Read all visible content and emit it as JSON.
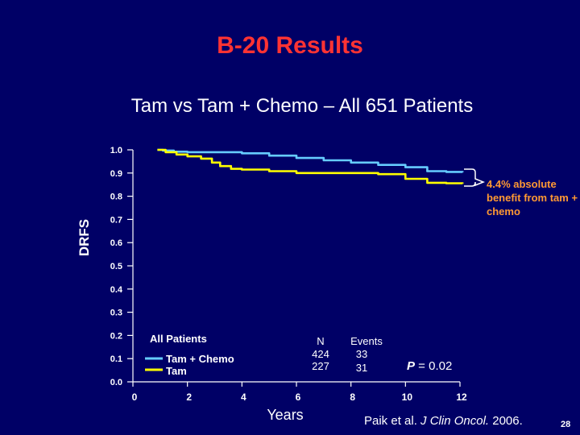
{
  "slide": {
    "title": "B-20 Results",
    "subtitle": "Tam vs Tam + Chemo – All 651 Patients",
    "benefit_note": "4.4% absolute benefit from tam + chemo",
    "citation_prefix": "Paik et al. ",
    "citation_journal": "J Clin Oncol.",
    "citation_year": " 2006.",
    "page_number": "28"
  },
  "colors": {
    "background": "#000066",
    "title": "#ff3333",
    "tam_chemo": "#66ccff",
    "tam": "#ffff00",
    "annotation": "#ff9933",
    "axis": "#ffffff"
  },
  "chart_data": {
    "type": "line",
    "title": "Tam vs Tam + Chemo – All 651 Patients",
    "xlabel": "Years",
    "ylabel": "DRFS",
    "xlim": [
      0,
      12
    ],
    "ylim": [
      0,
      1
    ],
    "x_ticks": [
      0,
      2,
      4,
      6,
      8,
      10,
      12
    ],
    "y_ticks": [
      "0.0",
      "0.1",
      "0.2",
      "0.3",
      "0.4",
      "0.5",
      "0.6",
      "0.7",
      "0.8",
      "0.9",
      "1.0"
    ],
    "series": [
      {
        "name": "Tam + Chemo",
        "color": "#66ccff",
        "x": [
          0.9,
          1.1,
          1.5,
          2.0,
          3.4,
          4.0,
          5.0,
          6.0,
          7.0,
          8.0,
          9.0,
          10.0,
          10.8,
          11.5,
          12.1
        ],
        "y": [
          1.0,
          0.997,
          0.992,
          0.99,
          0.99,
          0.985,
          0.975,
          0.965,
          0.955,
          0.945,
          0.935,
          0.925,
          0.908,
          0.905,
          0.904
        ]
      },
      {
        "name": "Tam",
        "color": "#ffff00",
        "x": [
          0.9,
          1.2,
          1.6,
          2.0,
          2.5,
          2.9,
          3.2,
          3.6,
          4.0,
          5.0,
          6.0,
          7.0,
          8.0,
          9.0,
          10.0,
          10.8,
          11.5,
          12.1
        ],
        "y": [
          1.0,
          0.99,
          0.98,
          0.972,
          0.962,
          0.945,
          0.93,
          0.918,
          0.915,
          0.908,
          0.9,
          0.9,
          0.9,
          0.895,
          0.875,
          0.858,
          0.856,
          0.855
        ]
      }
    ],
    "legend": {
      "title": "All Patients",
      "n_header": "N",
      "events_header": "Events",
      "rows": [
        {
          "label": "Tam + Chemo",
          "n": "424",
          "events": "33"
        },
        {
          "label": "Tam",
          "n": "227",
          "events": "31"
        }
      ]
    },
    "p_label": "P",
    "p_value": " = 0.02",
    "annotation": "4.4% absolute benefit from tam + chemo"
  }
}
